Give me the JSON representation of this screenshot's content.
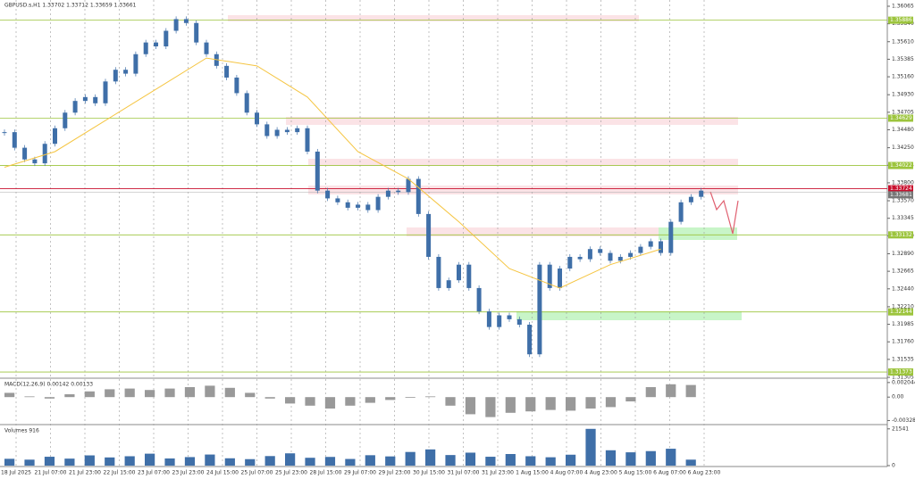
{
  "chart_data": {
    "type": "candlestick",
    "title": "GBPUSD.s,H1  1.33702 1.33712 1.33659 1.33661",
    "color": "#3f6fa8",
    "values": [
      1.3445,
      1.3425,
      1.341,
      1.3405,
      1.343,
      1.345,
      1.347,
      1.3485,
      1.349,
      1.3482,
      1.351,
      1.3525,
      1.352,
      1.3545,
      1.356,
      1.3555,
      1.3575,
      1.359,
      1.3585,
      1.356,
      1.3545,
      1.353,
      1.3515,
      1.3495,
      1.347,
      1.3455,
      1.344,
      1.3448,
      1.3445,
      1.345,
      1.342,
      1.337,
      1.336,
      1.3355,
      1.3348,
      1.3352,
      1.3345,
      1.3362,
      1.337,
      1.3368,
      1.3385,
      1.334,
      1.3285,
      1.3245,
      1.3255,
      1.3275,
      1.3245,
      1.3215,
      1.3195,
      1.321,
      1.3205,
      1.3198,
      1.316,
      1.3275,
      1.3245,
      1.327,
      1.3285,
      1.3282,
      1.3295,
      1.329,
      1.328,
      1.3285,
      1.329,
      1.3298,
      1.3305,
      1.329,
      1.333,
      1.3355,
      1.3362,
      1.337
    ],
    "ma": {
      "color": "#f5c542",
      "x": [
        0,
        5,
        10,
        15,
        20,
        25,
        30,
        35,
        40,
        45,
        50,
        55,
        60,
        65
      ],
      "values": [
        1.34,
        1.342,
        1.346,
        1.35,
        1.354,
        1.353,
        1.349,
        1.342,
        1.3385,
        1.333,
        1.327,
        1.3245,
        1.3275,
        1.3295
      ]
    },
    "ylim": [
      1.31282,
      1.36145
    ],
    "yticks": [
      1.36065,
      {
        "value": 1.3584,
        "label": "1.35840"
      },
      {
        "value": 1.3561,
        "label": "1.35610"
      },
      1.35385,
      {
        "value": 1.3516,
        "label": "1.35160"
      },
      {
        "value": 1.3493,
        "label": "1.34930"
      },
      1.34705,
      {
        "value": 1.3448,
        "label": "1.34480"
      },
      {
        "value": 1.3425,
        "label": "1.34250"
      },
      1.34025,
      {
        "value": 1.338,
        "label": "1.33800"
      },
      {
        "value": 1.3357,
        "label": "1.33570"
      },
      1.33345,
      {
        "value": 1.3312,
        "label": "1.33120"
      },
      {
        "value": 1.3289,
        "label": "1.32890"
      },
      1.32665,
      {
        "value": 1.3244,
        "label": "1.32440"
      },
      {
        "value": 1.3221,
        "label": "1.32210"
      },
      1.31985,
      {
        "value": 1.3176,
        "label": "1.31760"
      },
      1.31535,
      1.31305
    ],
    "levels": [
      1.35886,
      1.34629,
      1.34022,
      1.33132,
      1.32144,
      1.31373
    ],
    "level_color": "#9cc43c",
    "ask_line": 1.33724,
    "ask_color": "#c8102e",
    "bid_line": 1.33681,
    "xticks": [
      "18 Jul 2025",
      "21 Jul 07:00",
      "21 Jul 23:00",
      "22 Jul 15:00",
      "23 Jul 07:00",
      "23 Jul 23:00",
      "24 Jul 15:00",
      "25 Jul 07:00",
      "25 Jul 23:00",
      "28 Jul 15:00",
      "29 Jul 07:00",
      "29 Jul 23:00",
      "30 Jul 15:00",
      "31 Jul 07:00",
      "31 Jul 23:00",
      "1 Aug 15:00",
      "4 Aug 07:00",
      "4 Aug 23:00",
      "5 Aug 15:00",
      "6 Aug 07:00",
      "6 Aug 23:00"
    ],
    "macd": {
      "label": "MACD(12,26,9) 0.00142 0.00133",
      "ylim": [
        -0.0036,
        0.0024
      ],
      "yticks": [
        {
          "value": 0.002044,
          "label": "0.002044"
        },
        {
          "value": 0,
          "label": "0.00"
        },
        -0.00328
      ],
      "values": [
        0.0006,
        0.0001,
        -0.0002,
        0.0004,
        0.0008,
        0.0011,
        0.0012,
        0.001,
        0.0012,
        0.0014,
        0.0016,
        0.0013,
        0.0006,
        -0.0002,
        -0.0009,
        -0.0012,
        -0.0016,
        -0.0012,
        -0.0008,
        -0.0004,
        -0.0001,
        0.0001,
        -0.0012,
        -0.0024,
        -0.0028,
        -0.0022,
        -0.002,
        -0.0018,
        -0.0019,
        -0.0016,
        -0.0014,
        -0.0006,
        0.0014,
        0.0018,
        0.0017
      ]
    },
    "volume": {
      "label": "Volumes 916",
      "ylim": [
        0,
        23000
      ],
      "yticks": [
        21541,
        0
      ],
      "values": [
        4000,
        3500,
        5200,
        4100,
        6000,
        4800,
        5500,
        7000,
        4200,
        5000,
        6500,
        4300,
        3800,
        5600,
        7200,
        4600,
        5100,
        3900,
        6100,
        5400,
        8000,
        9500,
        6200,
        7600,
        5200,
        6800,
        5500,
        4900,
        6400,
        21541,
        9000,
        7800,
        8500,
        9900,
        3500
      ]
    }
  }
}
